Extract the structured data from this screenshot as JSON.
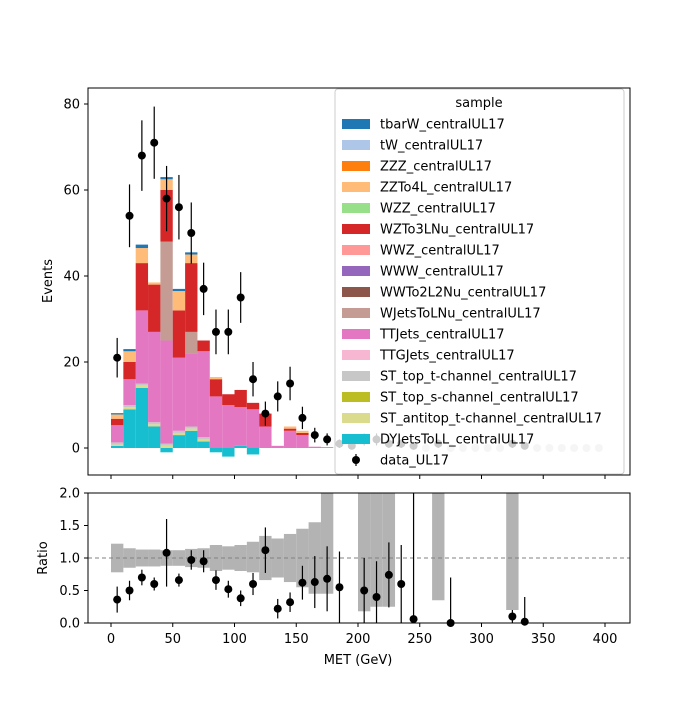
{
  "chart_data": {
    "type": "bar",
    "main": {
      "ylabel": "Events",
      "ylim": [
        -7,
        85
      ],
      "yticks": [
        0,
        20,
        40,
        60,
        80
      ],
      "x_edges": [
        0,
        10,
        20,
        30,
        40,
        50,
        60,
        70,
        80,
        90,
        100,
        110,
        120,
        130,
        140,
        150,
        160,
        170,
        180,
        190,
        200,
        210,
        220,
        230,
        240,
        250,
        260,
        270,
        280,
        290,
        300,
        310,
        320,
        330,
        340,
        350,
        360,
        370,
        380,
        390,
        400
      ],
      "stack_order_note": "",
      "series": [
        {
          "name": "DYJetsToLL_centralUL17",
          "color": "#17becf",
          "values": [
            0.5,
            9,
            14,
            5,
            -1,
            3,
            4,
            1.5,
            -1,
            -2,
            0.5,
            -1.5,
            0,
            0,
            0,
            0,
            0,
            0,
            0,
            0,
            0,
            0,
            0,
            0,
            0,
            0,
            0,
            0,
            0,
            0,
            0,
            0,
            0,
            0,
            0,
            0,
            0,
            0,
            0,
            0
          ]
        },
        {
          "name": "ST_antitop_t-channel_centralUL17",
          "color": "#dbdb8d",
          "values": [
            0.3,
            0.5,
            0.5,
            0.5,
            0.5,
            0.5,
            0.5,
            0.5,
            0,
            0,
            0,
            0,
            0,
            0,
            0,
            0,
            0,
            0,
            0,
            0,
            0,
            0,
            0,
            0,
            0,
            0,
            0,
            0,
            0,
            0,
            0,
            0,
            0,
            0,
            0,
            0,
            0,
            0,
            0,
            0
          ]
        },
        {
          "name": "ST_top_s-channel_centralUL17",
          "color": "#bcbd22",
          "values": [
            0,
            0,
            0,
            0,
            0,
            0,
            0,
            0,
            0,
            0,
            0,
            0,
            0,
            0,
            0,
            0,
            0,
            0,
            0,
            0,
            0,
            0,
            0,
            0,
            0,
            0,
            0,
            0,
            0,
            0,
            0,
            0,
            0,
            0,
            0,
            0,
            0,
            0,
            0,
            0
          ]
        },
        {
          "name": "ST_top_t-channel_centralUL17",
          "color": "#c7c7c7",
          "values": [
            0.5,
            0.5,
            0.5,
            0.5,
            0.5,
            0.5,
            0.5,
            0.5,
            0,
            0,
            0,
            0,
            0,
            0,
            0,
            0,
            0,
            0,
            0,
            0,
            0,
            0,
            0,
            0,
            0,
            0,
            0,
            0,
            0,
            0,
            0,
            0,
            0,
            0,
            0,
            0,
            0,
            0,
            0,
            0
          ]
        },
        {
          "name": "TTGJets_centralUL17",
          "color": "#f7b6d2",
          "values": [
            0,
            0,
            0,
            0,
            0,
            0,
            0,
            0,
            0,
            0,
            0,
            0,
            0,
            0,
            0,
            0,
            0,
            0,
            0,
            0,
            0,
            0,
            0,
            0,
            0,
            0,
            0,
            0,
            0,
            0,
            0,
            0,
            0,
            0,
            0,
            0,
            0,
            0,
            0,
            0
          ]
        },
        {
          "name": "TTJets_centralUL17",
          "color": "#e377c2",
          "values": [
            4,
            6,
            17,
            21,
            24,
            17,
            17,
            20,
            12,
            10,
            9,
            9,
            5,
            0.5,
            4,
            3,
            0.3,
            0.2,
            0,
            0,
            0,
            0,
            0,
            0,
            0,
            0,
            0,
            0,
            0,
            0,
            0,
            0,
            0,
            0,
            0,
            0,
            0,
            0,
            0,
            0
          ]
        },
        {
          "name": "WJetsToLNu_centralUL17",
          "color": "#c49c94",
          "values": [
            0,
            0,
            0,
            0,
            23,
            0,
            5,
            0,
            0,
            0,
            0,
            0,
            0,
            0,
            0,
            0,
            0,
            0,
            0,
            0,
            0,
            0,
            0,
            0,
            0,
            0,
            0,
            0,
            0,
            0,
            0,
            0,
            0,
            0,
            0,
            0,
            0,
            0,
            0,
            0
          ]
        },
        {
          "name": "WWTo2L2Nu_centralUL17",
          "color": "#8c564b",
          "values": [
            0,
            0,
            0,
            0,
            0,
            0,
            0,
            0,
            0,
            0,
            0,
            0,
            0,
            0,
            0,
            0,
            0,
            0,
            0,
            0,
            0,
            0,
            0,
            0,
            0,
            0,
            0,
            0,
            0,
            0,
            0,
            0,
            0,
            0,
            0,
            0,
            0,
            0,
            0,
            0
          ]
        },
        {
          "name": "WWW_centralUL17",
          "color": "#9467bd",
          "values": [
            0,
            0,
            0,
            0,
            0,
            0,
            0,
            0,
            0,
            0,
            0,
            0,
            0,
            0,
            0,
            0,
            0,
            0,
            0,
            0,
            0,
            0,
            0,
            0,
            0,
            0,
            0,
            0,
            0,
            0,
            0,
            0,
            0,
            0,
            0,
            0,
            0,
            0,
            0,
            0
          ]
        },
        {
          "name": "WWZ_centralUL17",
          "color": "#ff9896",
          "values": [
            0,
            0,
            0,
            0,
            0,
            0,
            0,
            0,
            0,
            0,
            0,
            0,
            0,
            0,
            0,
            0,
            0,
            0,
            0,
            0,
            0,
            0,
            0,
            0,
            0,
            0,
            0,
            0,
            0,
            0,
            0,
            0,
            0,
            0,
            0,
            0,
            0,
            0,
            0,
            0
          ]
        },
        {
          "name": "WZTo3LNu_centralUL17",
          "color": "#d62728",
          "values": [
            1.5,
            4,
            11,
            11,
            12,
            11,
            16,
            2.5,
            4,
            2.5,
            4,
            1.5,
            3,
            0,
            0.5,
            0.5,
            0,
            0,
            0,
            0,
            0,
            0,
            0,
            0,
            0,
            0,
            0,
            0,
            0,
            0,
            0,
            0,
            0,
            0,
            0,
            0,
            0,
            0,
            0,
            0
          ]
        },
        {
          "name": "WZZ_centralUL17",
          "color": "#98df8a",
          "values": [
            0,
            0,
            0,
            0,
            0,
            0,
            0,
            0,
            0,
            0,
            0,
            0,
            0,
            0,
            0,
            0,
            0,
            0,
            0,
            0,
            0,
            0,
            0,
            0,
            0,
            0,
            0,
            0,
            0,
            0,
            0,
            0,
            0,
            0,
            0,
            0,
            0,
            0,
            0,
            0
          ]
        },
        {
          "name": "ZZTo4L_centralUL17",
          "color": "#ffbb78",
          "values": [
            1,
            2.5,
            3.5,
            0.5,
            2.5,
            4.5,
            2,
            0,
            0.5,
            0,
            0,
            0,
            0,
            0,
            0.5,
            0.5,
            0,
            0,
            0,
            0,
            0,
            0,
            0,
            0,
            0,
            0,
            0,
            0,
            0,
            0,
            0,
            0,
            0,
            0,
            0,
            0,
            0,
            0,
            0,
            0
          ]
        },
        {
          "name": "ZZZ_centralUL17",
          "color": "#ff7f0e",
          "values": [
            0,
            0,
            0,
            0,
            0,
            0,
            0,
            0,
            0,
            0,
            0,
            0,
            0,
            0,
            0,
            0,
            0,
            0,
            0,
            0,
            0,
            0,
            0,
            0,
            0,
            0,
            0,
            0,
            0,
            0,
            0,
            0,
            0,
            0,
            0,
            0,
            0,
            0,
            0,
            0
          ]
        },
        {
          "name": "tW_centralUL17",
          "color": "#aec7e8",
          "values": [
            0,
            0,
            0,
            0,
            0,
            0,
            0,
            0,
            0,
            0,
            0,
            0,
            0,
            0,
            0,
            0,
            0,
            0,
            0,
            0,
            0,
            0,
            0,
            0,
            0,
            0,
            0,
            0,
            0,
            0,
            0,
            0,
            0,
            0,
            0,
            0,
            0,
            0,
            0,
            0
          ]
        },
        {
          "name": "tbarW_centralUL17",
          "color": "#1f77b4",
          "values": [
            0.3,
            0.5,
            0.8,
            0,
            0.5,
            0.5,
            0.5,
            0,
            0,
            0,
            0,
            0,
            0,
            0,
            0,
            0,
            0,
            0,
            0,
            0,
            0,
            0,
            0,
            0,
            0,
            0,
            0,
            0,
            0,
            0,
            0,
            0,
            0,
            0,
            0,
            0,
            0,
            0,
            0,
            0
          ]
        }
      ],
      "data": {
        "name": "data_UL17",
        "x": [
          5,
          15,
          25,
          35,
          45,
          55,
          65,
          75,
          85,
          95,
          105,
          115,
          125,
          135,
          145,
          155,
          165,
          175,
          185,
          195,
          205,
          215,
          225,
          235,
          245,
          255,
          265,
          275,
          285,
          295,
          305,
          315,
          325,
          335,
          345,
          355,
          365,
          375,
          385,
          395
        ],
        "y": [
          21,
          54,
          68,
          71,
          58,
          56,
          50,
          37,
          27,
          27,
          35,
          16,
          8,
          12,
          15,
          7,
          3,
          2,
          1,
          0.5,
          2,
          2,
          1,
          1,
          0.5,
          0,
          1,
          0,
          0,
          0,
          0,
          0,
          1,
          0.5,
          0,
          0,
          0,
          0,
          0,
          0
        ],
        "yerr": [
          4.6,
          7.3,
          8.2,
          8.4,
          7.6,
          7.5,
          7.1,
          6.1,
          5.2,
          5.2,
          5.9,
          4,
          2.8,
          3.5,
          3.9,
          2.6,
          1.7,
          1.4,
          1,
          0.7,
          1.4,
          1.4,
          1,
          1,
          0.7,
          0,
          1,
          0,
          0,
          0,
          0,
          0,
          1,
          0.7,
          0,
          0,
          0,
          0,
          0,
          0
        ]
      },
      "legend": {
        "title": "sample",
        "placement": "upper-right"
      }
    },
    "ratio": {
      "ylabel": "Ratio",
      "xlabel": "MET (GeV)",
      "ylim": [
        0,
        2
      ],
      "yticks": [
        "0.0",
        "0.5",
        "1.0",
        "1.5",
        "2.0"
      ],
      "xticks": [
        "0",
        "50",
        "100",
        "150",
        "200",
        "250",
        "300",
        "350",
        "400"
      ],
      "reference_line": 1.0,
      "uncertainty_band": {
        "lo": [
          0.78,
          0.85,
          0.87,
          0.87,
          0.88,
          0.88,
          0.86,
          0.85,
          0.8,
          0.82,
          0.8,
          0.78,
          0.66,
          0.7,
          0.63,
          0.55,
          0.45,
          0.45,
          null,
          null,
          0.18,
          0.25,
          0.25,
          null,
          null,
          null,
          0.35,
          null,
          null,
          null,
          null,
          null,
          0.2,
          null,
          null,
          null,
          null,
          null,
          null,
          null
        ],
        "hi": [
          1.22,
          1.15,
          1.13,
          1.13,
          1.12,
          1.12,
          1.14,
          1.15,
          1.2,
          1.18,
          1.2,
          1.25,
          1.34,
          1.3,
          1.37,
          1.45,
          1.55,
          2.0,
          null,
          null,
          2.0,
          2.0,
          2.0,
          null,
          null,
          null,
          2.0,
          null,
          null,
          null,
          null,
          null,
          2.0,
          null,
          null,
          null,
          null,
          null,
          null,
          null
        ]
      },
      "points": {
        "x": [
          5,
          15,
          25,
          35,
          45,
          55,
          65,
          75,
          85,
          95,
          105,
          115,
          125,
          135,
          145,
          155,
          165,
          175,
          185,
          205,
          215,
          225,
          235,
          245,
          275,
          325,
          335
        ],
        "y": [
          0.36,
          0.5,
          0.7,
          0.6,
          1.08,
          0.66,
          0.97,
          0.95,
          0.66,
          0.52,
          0.38,
          0.6,
          1.12,
          0.22,
          0.32,
          0.62,
          0.63,
          0.68,
          0.55,
          0.5,
          0.4,
          0.74,
          0.6,
          0.06,
          0.0,
          0.1,
          0.02
        ],
        "yerr": [
          0.2,
          0.15,
          0.12,
          0.1,
          0.52,
          0.1,
          0.15,
          0.17,
          0.15,
          0.13,
          0.12,
          0.17,
          0.35,
          0.15,
          0.15,
          0.26,
          0.4,
          0.5,
          0.55,
          0.5,
          0.55,
          0.5,
          0.6,
          1.94,
          0.7,
          0.1,
          0.38
        ]
      }
    }
  }
}
